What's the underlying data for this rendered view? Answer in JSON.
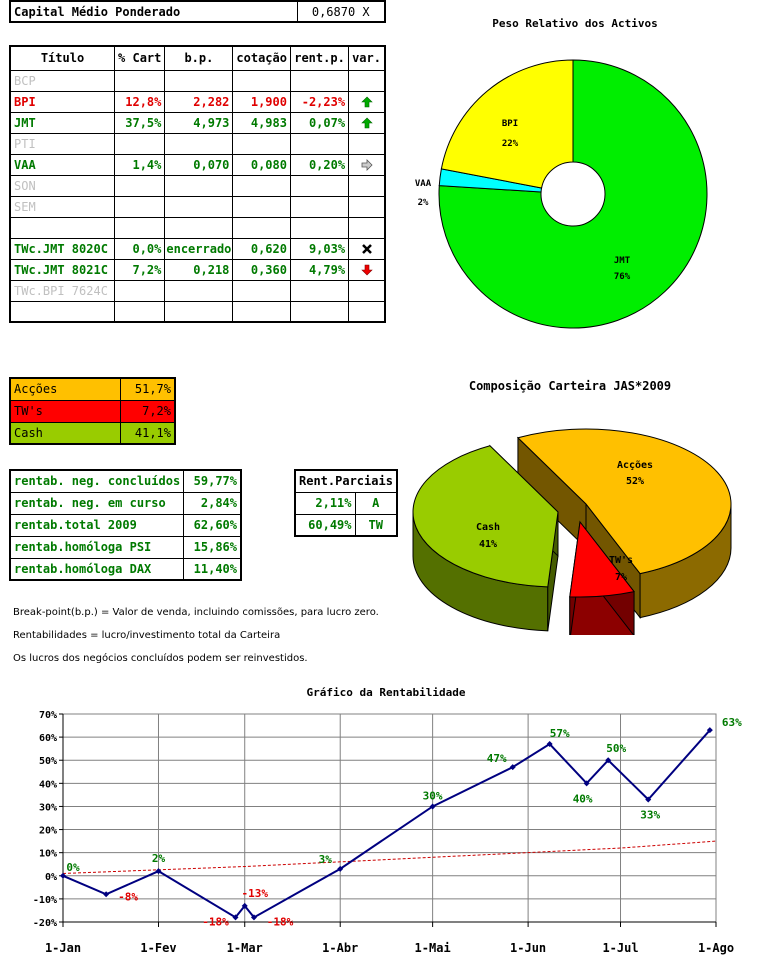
{
  "capital": {
    "label": "Capital Médio Ponderado",
    "value": "0,6870 X"
  },
  "holdings": {
    "headers": [
      "Título",
      "% Cart",
      "b.p.",
      "cotação",
      "rent.p.",
      "var."
    ],
    "rows": [
      {
        "name": "BCP",
        "style": "gray",
        "pct": "",
        "bp": "",
        "cot": "",
        "rent": "",
        "var_icon": ""
      },
      {
        "name": "BPI",
        "style": "red",
        "pct": "12,8%",
        "bp": "2,282",
        "cot": "1,900",
        "rent": "-2,23%",
        "var_icon": "arrow-up-green"
      },
      {
        "name": "JMT",
        "style": "green",
        "pct": "37,5%",
        "bp": "4,973",
        "cot": "4,983",
        "rent": "0,07%",
        "var_icon": "arrow-up-green"
      },
      {
        "name": "PTI",
        "style": "gray",
        "pct": "",
        "bp": "",
        "cot": "",
        "rent": "",
        "var_icon": ""
      },
      {
        "name": "VAA",
        "style": "green",
        "pct": "1,4%",
        "bp": "0,070",
        "cot": "0,080",
        "rent": "0,20%",
        "var_icon": "arrow-right-gray"
      },
      {
        "name": "SON",
        "style": "gray",
        "pct": "",
        "bp": "",
        "cot": "",
        "rent": "",
        "var_icon": ""
      },
      {
        "name": "SEM",
        "style": "gray",
        "pct": "",
        "bp": "",
        "cot": "",
        "rent": "",
        "var_icon": ""
      },
      {
        "name": "",
        "style": "gray",
        "pct": "",
        "bp": "",
        "cot": "",
        "rent": "",
        "var_icon": ""
      },
      {
        "name": "TWc.JMT 8020C",
        "style": "green",
        "pct": "0,0%",
        "bp": "encerrado",
        "cot": "0,620",
        "rent": "9,03%",
        "var_icon": "cross-black"
      },
      {
        "name": "TWc.JMT 8021C",
        "style": "green",
        "pct": "7,2%",
        "bp": "0,218",
        "cot": "0,360",
        "rent": "4,79%",
        "var_icon": "arrow-down-red"
      },
      {
        "name": "TWc.BPI 7624C",
        "style": "gray",
        "pct": "",
        "bp": "",
        "cot": "",
        "rent": "",
        "var_icon": ""
      },
      {
        "name": "",
        "style": "gray",
        "pct": "",
        "bp": "",
        "cot": "",
        "rent": "",
        "var_icon": ""
      }
    ]
  },
  "allocation": [
    {
      "label": "Acções",
      "value": "51,7%",
      "color": "#ffc000"
    },
    {
      "label": "TW's",
      "value": "7,2%",
      "color": "#ff0000"
    },
    {
      "label": "Cash",
      "value": "41,1%",
      "color": "#99cc00"
    }
  ],
  "returns": [
    {
      "label": "rentab. neg. concluídos",
      "value": "59,77%"
    },
    {
      "label": "rentab. neg. em curso",
      "value": "2,84%"
    },
    {
      "label": "rentab.total 2009",
      "value": "62,60%"
    },
    {
      "label": "rentab.homóloga PSI",
      "value": "15,86%"
    },
    {
      "label": "rentab.homóloga DAX",
      "value": "11,40%"
    }
  ],
  "partial": {
    "header": "Rent.Parciais",
    "rows": [
      {
        "value": "2,11%",
        "tag": "A"
      },
      {
        "value": "60,49%",
        "tag": "TW"
      }
    ]
  },
  "notes": [
    "Break-point(b.p.) = Valor de venda, incluindo comissões, para lucro zero.",
    "Rentabilidades = lucro/investimento total da Carteira",
    "Os lucros dos negócios concluídos podem ser reinvestidos."
  ],
  "colors": {
    "green_text": "#007a00",
    "red_text": "#e00000",
    "line": "#000080",
    "ref_line": "#cc0000"
  },
  "chart_data": [
    {
      "type": "pie",
      "title": "Peso Relativo dos Activos",
      "style": "doughnut",
      "slices": [
        {
          "label": "JMT",
          "pct_label": "76%",
          "value": 76,
          "color": "#00ee00"
        },
        {
          "label": "VAA",
          "pct_label": "2%",
          "value": 2,
          "color": "#00ffff"
        },
        {
          "label": "BPI",
          "pct_label": "22%",
          "value": 22,
          "color": "#ffff00"
        }
      ]
    },
    {
      "type": "pie",
      "title": "Composição Carteira JAS*2009",
      "style": "3d-exploded",
      "slices": [
        {
          "label": "Acções",
          "pct_label": "52%",
          "value": 51.7,
          "color": "#ffc000"
        },
        {
          "label": "TW's",
          "pct_label": "7%",
          "value": 7.2,
          "color": "#ff0000"
        },
        {
          "label": "Cash",
          "pct_label": "41%",
          "value": 41.1,
          "color": "#99cc00"
        }
      ]
    },
    {
      "type": "line",
      "title": "Gráfico da Rentabilidade",
      "xlabel": "",
      "ylabel": "",
      "x_ticks": [
        "1-Jan",
        "1-Fev",
        "1-Mar",
        "1-Abr",
        "1-Mai",
        "1-Jun",
        "1-Jul",
        "1-Ago"
      ],
      "y_ticks": [
        "-20%",
        "-10%",
        "0%",
        "10%",
        "20%",
        "30%",
        "40%",
        "50%",
        "60%",
        "70%"
      ],
      "ylim": [
        -20,
        70
      ],
      "grid": true,
      "series": [
        {
          "style": "solid",
          "color": "#000080",
          "points": [
            {
              "x": "1-Jan",
              "y": 0,
              "label": "0%"
            },
            {
              "x": "15-Jan",
              "y": -8,
              "label": "-8%"
            },
            {
              "x": "1-Fev",
              "y": 2,
              "label": "2%"
            },
            {
              "x": "26-Fev",
              "y": -18,
              "label": "-18%"
            },
            {
              "x": "1-Mar",
              "y": -13,
              "label": "-13%"
            },
            {
              "x": "4-Mar",
              "y": -18,
              "label": "-18%"
            },
            {
              "x": "1-Abr",
              "y": 3,
              "label": "3%"
            },
            {
              "x": "1-Mai",
              "y": 30,
              "label": "30%"
            },
            {
              "x": "27-Mai",
              "y": 47,
              "label": "47%"
            },
            {
              "x": "8-Jun",
              "y": 57,
              "label": "57%"
            },
            {
              "x": "20-Jun",
              "y": 40,
              "label": "40%"
            },
            {
              "x": "27-Jun",
              "y": 50,
              "label": "50%"
            },
            {
              "x": "10-Jul",
              "y": 33,
              "label": "33%"
            },
            {
              "x": "30-Jul",
              "y": 63,
              "label": "63%"
            }
          ]
        },
        {
          "style": "dashed",
          "color": "#cc0000",
          "points": [
            {
              "x": "1-Jan",
              "y": 1
            },
            {
              "x": "1-Mar",
              "y": 4
            },
            {
              "x": "1-Mai",
              "y": 8
            },
            {
              "x": "1-Jul",
              "y": 12
            },
            {
              "x": "15-Ago",
              "y": 15
            }
          ]
        }
      ]
    }
  ]
}
